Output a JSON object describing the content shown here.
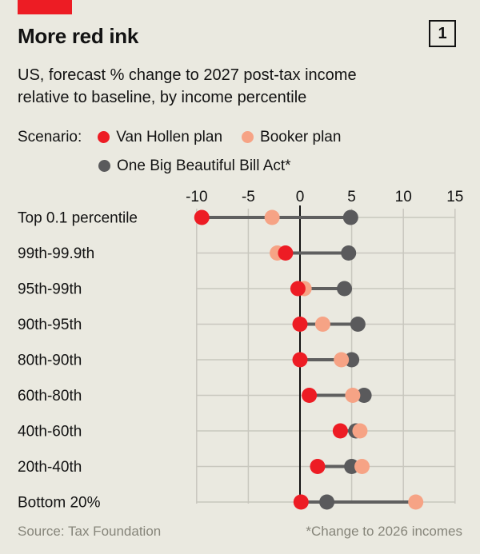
{
  "header": {
    "title": "More red ink",
    "figure_number": "1"
  },
  "subtitle": {
    "line1": "US, forecast % change to 2027 post-tax income",
    "line2": "relative to baseline, by income percentile"
  },
  "legend": {
    "label": "Scenario:"
  },
  "colors": {
    "background": "#eae9e0",
    "ink": "#121212",
    "accent_red": "#ed1c24",
    "grid": "#c8c7be",
    "zero_line": "#121212",
    "connector": "#5f5f5f",
    "muted_text": "#86857a"
  },
  "chart_data": {
    "type": "scatter",
    "variant": "dumbbell-dot-plot",
    "title": "US, forecast % change to 2027 post-tax income relative to baseline, by income percentile",
    "xlabel": "",
    "ylabel": "",
    "xlim": [
      -10,
      15
    ],
    "x_ticks": [
      -10,
      -5,
      0,
      5,
      10,
      15
    ],
    "grid": true,
    "legend_position": "top",
    "categories": [
      "Top 0.1 percentile",
      "99th-99.9th",
      "95th-99th",
      "90th-95th",
      "80th-90th",
      "60th-80th",
      "40th-60th",
      "20th-40th",
      "Bottom 20%"
    ],
    "series": [
      {
        "name": "Van Hollen plan",
        "color": "#ed1c24",
        "values": [
          -9.5,
          -1.4,
          -0.2,
          0,
          0,
          0.9,
          3.9,
          1.7,
          0.1
        ]
      },
      {
        "name": "Booker plan",
        "color": "#f6a385",
        "values": [
          -2.7,
          -2.2,
          0.4,
          2.2,
          4.0,
          5.1,
          5.8,
          6.0,
          11.2
        ]
      },
      {
        "name": "One Big Beautiful Bill Act*",
        "color": "#5a5a5c",
        "values": [
          4.9,
          4.7,
          4.3,
          5.6,
          5.0,
          6.2,
          5.4,
          5.0,
          2.6
        ]
      }
    ]
  },
  "footer": {
    "source": "Source: Tax Foundation",
    "note": "*Change to 2026 incomes"
  }
}
